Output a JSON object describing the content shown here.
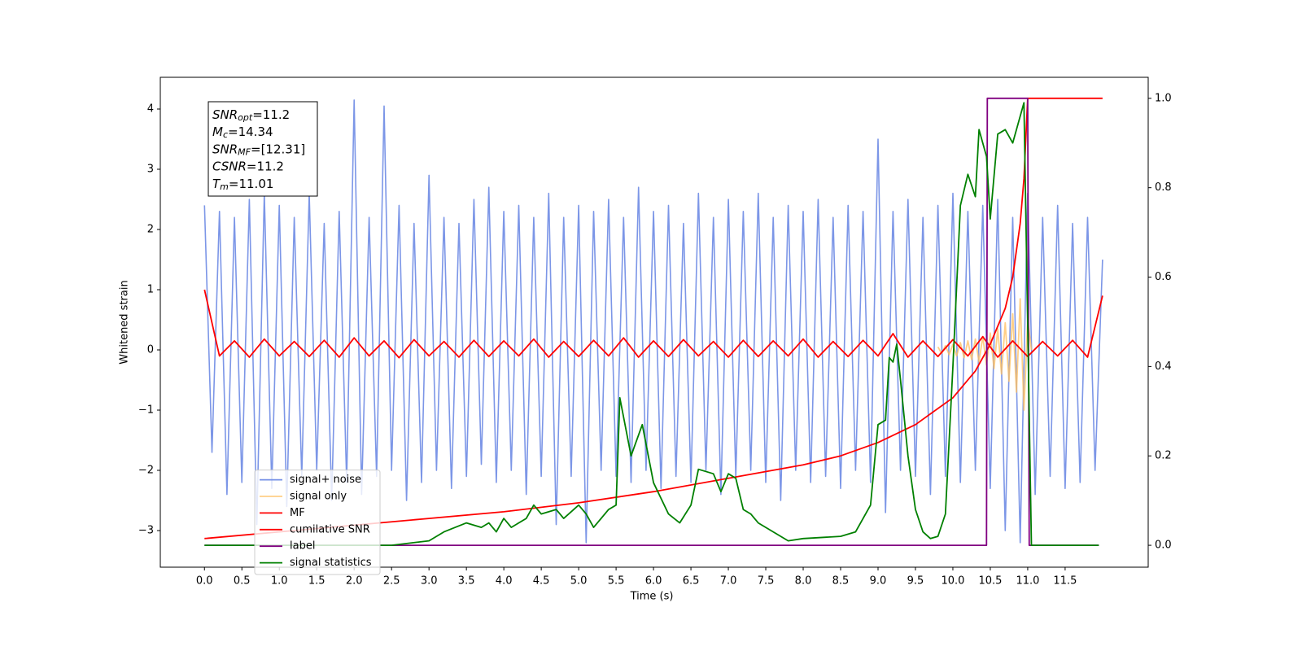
{
  "chart_data": {
    "type": "line",
    "xlabel": "Time (s)",
    "ylabel": "Whitened strain",
    "xlim": [
      -0.59,
      12.61
    ],
    "ylim": [
      -3.608,
      4.527
    ],
    "y2lim": [
      -0.049,
      1.047
    ],
    "xticks": [
      {
        "value": 0,
        "label": "0.0"
      },
      {
        "value": 0.5,
        "label": "0.5"
      },
      {
        "value": 1,
        "label": "1.0"
      },
      {
        "value": 1.5,
        "label": "1.5"
      },
      {
        "value": 2,
        "label": "2.0"
      },
      {
        "value": 2.5,
        "label": "2.5"
      },
      {
        "value": 3,
        "label": "3.0"
      },
      {
        "value": 3.5,
        "label": "3.5"
      },
      {
        "value": 4,
        "label": "4.0"
      },
      {
        "value": 4.5,
        "label": "4.5"
      },
      {
        "value": 5,
        "label": "5.0"
      },
      {
        "value": 5.5,
        "label": "5.5"
      },
      {
        "value": 6,
        "label": "6.0"
      },
      {
        "value": 6.5,
        "label": "6.5"
      },
      {
        "value": 7,
        "label": "7.0"
      },
      {
        "value": 7.5,
        "label": "7.5"
      },
      {
        "value": 8,
        "label": "8.0"
      },
      {
        "value": 8.5,
        "label": "8.5"
      },
      {
        "value": 9,
        "label": "9.0"
      },
      {
        "value": 9.5,
        "label": "9.5"
      },
      {
        "value": 10,
        "label": "10.0"
      },
      {
        "value": 10.5,
        "label": "10.5"
      },
      {
        "value": 11,
        "label": "11.0"
      },
      {
        "value": 11.5,
        "label": "11.5"
      }
    ],
    "yticks": [
      {
        "value": -3,
        "label": "−3"
      },
      {
        "value": -2,
        "label": "−2"
      },
      {
        "value": -1,
        "label": "−1"
      },
      0,
      1,
      2,
      3,
      4
    ],
    "y2ticks": [
      {
        "value": 0,
        "label": "0.0"
      },
      {
        "value": 0.2,
        "label": "0.2"
      },
      {
        "value": 0.4,
        "label": "0.4"
      },
      {
        "value": 0.6,
        "label": "0.6"
      },
      {
        "value": 0.8,
        "label": "0.8"
      },
      {
        "value": 1,
        "label": "1.0"
      }
    ],
    "legend": "lower left",
    "annotations": [
      {
        "name": "SNR",
        "sub": "opt",
        "text": "=11.2"
      },
      {
        "name": "M",
        "sub": "c",
        "text": "=14.34"
      },
      {
        "name": "SNR",
        "sub": "MF",
        "text": "=[12.31]"
      },
      {
        "name": "CSNR",
        "text": "=11.2"
      },
      {
        "name": "T",
        "sub": "m",
        "text": "=11.01"
      }
    ],
    "series": [
      {
        "name": "signal+ noise",
        "color": "#7590e6",
        "axis": "y",
        "x": [
          0,
          0.1,
          0.2,
          0.3,
          0.4,
          0.5,
          0.6,
          0.7,
          0.8,
          0.9,
          1,
          1.1,
          1.2,
          1.3,
          1.4,
          1.5,
          1.6,
          1.7,
          1.8,
          1.9,
          2,
          2.1,
          2.2,
          2.3,
          2.4,
          2.5,
          2.6,
          2.7,
          2.8,
          2.9,
          3,
          3.1,
          3.2,
          3.3,
          3.4,
          3.5,
          3.6,
          3.7,
          3.8,
          3.9,
          4,
          4.1,
          4.2,
          4.3,
          4.4,
          4.5,
          4.6,
          4.7,
          4.8,
          4.9,
          5,
          5.1,
          5.2,
          5.3,
          5.4,
          5.5,
          5.6,
          5.7,
          5.8,
          5.9,
          6,
          6.1,
          6.2,
          6.3,
          6.4,
          6.5,
          6.6,
          6.7,
          6.8,
          6.9,
          7,
          7.1,
          7.2,
          7.3,
          7.4,
          7.5,
          7.6,
          7.7,
          7.8,
          7.9,
          8,
          8.1,
          8.2,
          8.3,
          8.4,
          8.5,
          8.6,
          8.7,
          8.8,
          8.9,
          9,
          9.1,
          9.2,
          9.3,
          9.4,
          9.5,
          9.6,
          9.7,
          9.8,
          9.9,
          10,
          10.1,
          10.2,
          10.3,
          10.4,
          10.5,
          10.6,
          10.7,
          10.8,
          10.9,
          11,
          11.1,
          11.2,
          11.3,
          11.4,
          11.5,
          11.6,
          11.7,
          11.8,
          11.9,
          12
        ],
        "values": [
          2.4,
          -1.7,
          2.3,
          -2.4,
          2.2,
          -2.2,
          2.5,
          -2.9,
          2.6,
          -2.3,
          2.4,
          -2.6,
          2.2,
          -2.1,
          2.6,
          -2.0,
          2.1,
          -2.5,
          2.3,
          -2.2,
          4.15,
          -2.4,
          2.2,
          -2.1,
          4.05,
          -2.0,
          2.4,
          -2.5,
          2.1,
          -2.2,
          2.9,
          -2.0,
          2.2,
          -2.3,
          2.1,
          -2.1,
          2.5,
          -1.9,
          2.7,
          -2.2,
          2.3,
          -2.0,
          2.4,
          -2.4,
          2.2,
          -2.1,
          2.6,
          -2.9,
          2.2,
          -2.1,
          2.4,
          -3.2,
          2.3,
          -2.0,
          2.5,
          -2.1,
          2.2,
          -2.2,
          2.7,
          -2.0,
          2.3,
          -2.3,
          2.4,
          -2.1,
          2.1,
          -2.2,
          2.6,
          -2.0,
          2.2,
          -2.4,
          2.5,
          -2.1,
          2.3,
          -2.0,
          2.6,
          -2.2,
          2.2,
          -2.5,
          2.4,
          -2.0,
          2.3,
          -2.2,
          2.5,
          -2.1,
          2.2,
          -2.3,
          2.4,
          -2.0,
          2.3,
          -2.2,
          3.5,
          -2.7,
          2.3,
          -2.0,
          2.5,
          -2.1,
          2.2,
          -2.4,
          2.4,
          -2.1,
          2.6,
          -2.2,
          2.3,
          -2.0,
          2.4,
          -2.3,
          2.5,
          -3.0,
          2.2,
          -3.2,
          2.6,
          -2.4,
          2.2,
          -2.1,
          2.4,
          -2.3,
          2.1,
          -2.2,
          2.2,
          -2.0,
          1.5
        ]
      },
      {
        "name": "signal only",
        "color": "#ffbf5f",
        "axis": "y",
        "x": [
          9.8,
          9.85,
          9.9,
          9.95,
          10,
          10.05,
          10.1,
          10.15,
          10.2,
          10.25,
          10.3,
          10.35,
          10.4,
          10.45,
          10.5,
          10.55,
          10.6,
          10.65,
          10.7,
          10.75,
          10.8,
          10.85,
          10.9,
          10.95,
          11,
          11.05
        ],
        "values": [
          0.05,
          -0.06,
          0.07,
          -0.08,
          0.09,
          -0.1,
          0.12,
          -0.13,
          0.15,
          -0.16,
          0.18,
          -0.2,
          0.22,
          -0.25,
          0.28,
          -0.31,
          0.35,
          -0.4,
          0.45,
          -0.52,
          0.6,
          -0.7,
          0.85,
          -1.0,
          0.5,
          0
        ]
      },
      {
        "name": "MF",
        "color": "#ff0000",
        "axis": "y",
        "x": [
          0,
          0.2,
          0.4,
          0.6,
          0.8,
          1,
          1.2,
          1.4,
          1.6,
          1.8,
          2,
          2.2,
          2.4,
          2.6,
          2.8,
          3,
          3.2,
          3.4,
          3.6,
          3.8,
          4,
          4.2,
          4.4,
          4.6,
          4.8,
          5,
          5.2,
          5.4,
          5.6,
          5.8,
          6,
          6.2,
          6.4,
          6.6,
          6.8,
          7,
          7.2,
          7.4,
          7.6,
          7.8,
          8,
          8.2,
          8.4,
          8.6,
          8.8,
          9,
          9.2,
          9.4,
          9.6,
          9.8,
          10,
          10.2,
          10.4,
          10.6,
          10.8,
          11,
          11.2,
          11.4,
          11.6,
          11.8,
          12
        ],
        "values": [
          1.0,
          -0.1,
          0.15,
          -0.12,
          0.18,
          -0.1,
          0.14,
          -0.11,
          0.16,
          -0.12,
          0.2,
          -0.1,
          0.15,
          -0.13,
          0.17,
          -0.1,
          0.14,
          -0.12,
          0.16,
          -0.11,
          0.15,
          -0.1,
          0.18,
          -0.12,
          0.14,
          -0.11,
          0.16,
          -0.1,
          0.2,
          -0.12,
          0.15,
          -0.11,
          0.17,
          -0.1,
          0.14,
          -0.12,
          0.16,
          -0.11,
          0.15,
          -0.1,
          0.18,
          -0.12,
          0.14,
          -0.11,
          0.16,
          -0.1,
          0.27,
          -0.12,
          0.15,
          -0.11,
          0.17,
          -0.1,
          0.22,
          -0.12,
          0.15,
          -0.11,
          0.14,
          -0.1,
          0.16,
          -0.12,
          0.9
        ]
      },
      {
        "name": "cumilative SNR",
        "color": "#ff0000",
        "axis": "y2",
        "x": [
          0,
          1,
          2,
          3,
          4,
          5,
          6,
          7,
          8,
          8.5,
          9,
          9.5,
          10,
          10.3,
          10.5,
          10.7,
          10.8,
          10.9,
          10.95,
          11,
          12
        ],
        "values": [
          0.015,
          0.03,
          0.045,
          0.06,
          0.075,
          0.095,
          0.12,
          0.15,
          0.18,
          0.2,
          0.23,
          0.27,
          0.33,
          0.39,
          0.45,
          0.53,
          0.6,
          0.72,
          0.82,
          1.0,
          1.0
        ]
      },
      {
        "name": "label",
        "color": "#800080",
        "axis": "y2",
        "x": [
          0,
          10.45,
          10.46,
          11,
          11.02,
          11.95
        ],
        "values": [
          0,
          0,
          1,
          1,
          0,
          0
        ]
      },
      {
        "name": "signal statistics",
        "color": "#008000",
        "axis": "y2",
        "x": [
          0,
          2.5,
          3,
          3.2,
          3.5,
          3.7,
          3.8,
          3.9,
          4,
          4.1,
          4.3,
          4.4,
          4.5,
          4.7,
          4.8,
          5,
          5.1,
          5.2,
          5.4,
          5.5,
          5.55,
          5.7,
          5.85,
          6,
          6.2,
          6.35,
          6.5,
          6.6,
          6.8,
          6.9,
          7,
          7.1,
          7.2,
          7.3,
          7.4,
          7.6,
          7.7,
          7.8,
          8,
          8.5,
          8.7,
          8.9,
          9,
          9.1,
          9.15,
          9.2,
          9.25,
          9.3,
          9.4,
          9.5,
          9.6,
          9.7,
          9.8,
          9.9,
          10,
          10.1,
          10.2,
          10.3,
          10.35,
          10.45,
          10.5,
          10.6,
          10.7,
          10.8,
          10.95,
          11.05,
          11.95
        ],
        "values": [
          0,
          0,
          0.01,
          0.03,
          0.05,
          0.04,
          0.05,
          0.03,
          0.06,
          0.04,
          0.06,
          0.09,
          0.07,
          0.08,
          0.06,
          0.09,
          0.07,
          0.04,
          0.08,
          0.09,
          0.33,
          0.2,
          0.27,
          0.14,
          0.07,
          0.05,
          0.09,
          0.17,
          0.16,
          0.12,
          0.16,
          0.15,
          0.08,
          0.07,
          0.05,
          0.03,
          0.02,
          0.01,
          0.015,
          0.02,
          0.03,
          0.09,
          0.27,
          0.28,
          0.42,
          0.41,
          0.45,
          0.37,
          0.2,
          0.08,
          0.03,
          0.015,
          0.02,
          0.07,
          0.4,
          0.76,
          0.83,
          0.78,
          0.93,
          0.87,
          0.73,
          0.92,
          0.93,
          0.9,
          0.99,
          0,
          0
        ]
      }
    ]
  }
}
